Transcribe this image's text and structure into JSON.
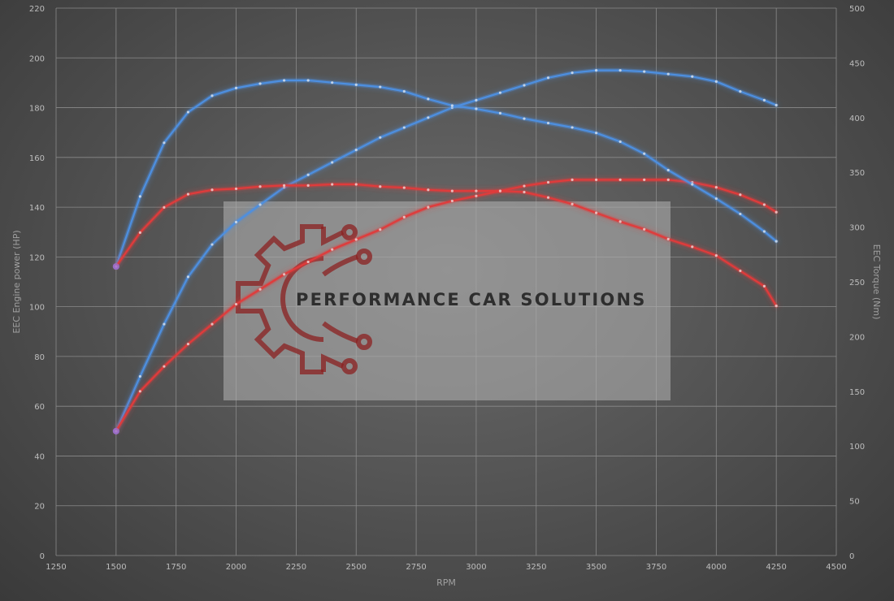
{
  "chart_data": {
    "type": "line",
    "xlabel": "RPM",
    "ylabel": "EEC Engine power (HP)",
    "y2label": "EEC Torque (Nm)",
    "xlim": [
      1250,
      4500
    ],
    "ylim": [
      0,
      220
    ],
    "y2lim": [
      0,
      500
    ],
    "x_ticks": [
      1250,
      1500,
      1750,
      2000,
      2250,
      2500,
      2750,
      3000,
      3250,
      3500,
      3750,
      4000,
      4250,
      4500
    ],
    "y_ticks": [
      0,
      20,
      40,
      60,
      80,
      100,
      120,
      140,
      160,
      180,
      200,
      220
    ],
    "y2_ticks": [
      0,
      50,
      100,
      150,
      200,
      250,
      300,
      350,
      400,
      450,
      500
    ],
    "grid": true,
    "x": [
      1500,
      1600,
      1700,
      1800,
      1900,
      2000,
      2100,
      2200,
      2300,
      2400,
      2500,
      2600,
      2700,
      2800,
      2900,
      3000,
      3100,
      3200,
      3300,
      3400,
      3500,
      3600,
      3700,
      3800,
      3900,
      4000,
      4100,
      4200,
      4250
    ],
    "series": [
      {
        "axis": "left",
        "color": "#4d8fe0",
        "values": [
          50,
          72,
          93,
          112,
          125,
          134,
          141,
          148,
          153,
          158,
          163,
          168,
          172,
          176,
          180,
          183,
          186,
          189,
          192,
          194,
          195,
          195,
          194.5,
          193.5,
          192.5,
          190.5,
          186.5,
          183,
          181
        ]
      },
      {
        "axis": "left",
        "color": "#e03b3b",
        "values": [
          50,
          66,
          76,
          85,
          93,
          101,
          107,
          113,
          118,
          123,
          127,
          131,
          136,
          140,
          142.5,
          144.5,
          146.5,
          148.5,
          150,
          151,
          151,
          151,
          151,
          151,
          150,
          148,
          145,
          141,
          138
        ]
      },
      {
        "axis": "right",
        "color": "#4d8fe0",
        "values": [
          264,
          328,
          377,
          405,
          420,
          427,
          431,
          434,
          434,
          432,
          430,
          428,
          424,
          417,
          411,
          408,
          404,
          399,
          395,
          391,
          386,
          378,
          367,
          352,
          339,
          326,
          312,
          296,
          287
        ]
      },
      {
        "axis": "right",
        "color": "#e03b3b",
        "values": [
          264,
          295,
          318,
          330,
          334,
          335,
          337,
          338,
          338,
          339,
          339,
          337,
          336,
          334,
          333,
          333,
          333,
          332,
          327,
          321,
          313,
          305,
          298,
          289,
          282,
          274,
          260,
          246,
          228
        ]
      }
    ]
  },
  "watermark": {
    "text": "PERFORMANCE CAR SOLUTIONS",
    "icon": "gear-circuit-icon",
    "color": "#8b2020"
  }
}
